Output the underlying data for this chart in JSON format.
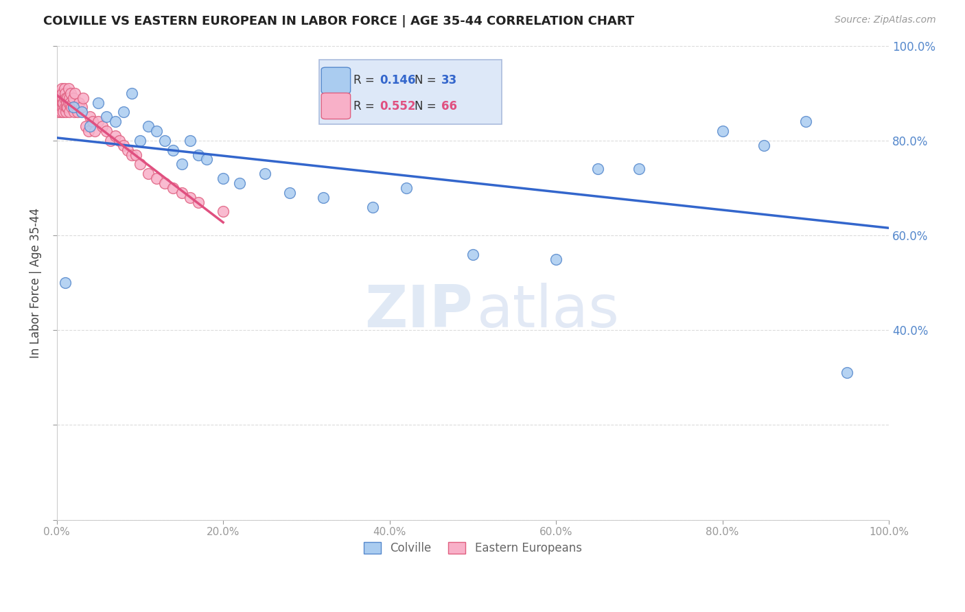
{
  "title": "COLVILLE VS EASTERN EUROPEAN IN LABOR FORCE | AGE 35-44 CORRELATION CHART",
  "source": "Source: ZipAtlas.com",
  "ylabel": "In Labor Force | Age 35-44",
  "xlim": [
    0.0,
    1.0
  ],
  "ylim": [
    0.0,
    1.0
  ],
  "colville_color": "#aaccf0",
  "colville_edge": "#5588cc",
  "eastern_color": "#f8b0c8",
  "eastern_edge": "#e06080",
  "trendline_colville": "#3366cc",
  "trendline_eastern": "#e05080",
  "R_colville": 0.146,
  "N_colville": 33,
  "R_eastern": 0.552,
  "N_eastern": 66,
  "colville_x": [
    0.01,
    0.02,
    0.03,
    0.04,
    0.05,
    0.06,
    0.07,
    0.08,
    0.09,
    0.1,
    0.11,
    0.12,
    0.13,
    0.14,
    0.15,
    0.16,
    0.17,
    0.18,
    0.2,
    0.22,
    0.25,
    0.28,
    0.32,
    0.38,
    0.42,
    0.5,
    0.6,
    0.65,
    0.7,
    0.8,
    0.85,
    0.9,
    0.95
  ],
  "colville_y": [
    0.5,
    0.87,
    0.86,
    0.83,
    0.88,
    0.85,
    0.84,
    0.86,
    0.9,
    0.8,
    0.83,
    0.82,
    0.8,
    0.78,
    0.75,
    0.8,
    0.77,
    0.76,
    0.72,
    0.71,
    0.73,
    0.69,
    0.68,
    0.66,
    0.7,
    0.56,
    0.55,
    0.74,
    0.74,
    0.82,
    0.79,
    0.84,
    0.31
  ],
  "eastern_x": [
    0.001,
    0.002,
    0.003,
    0.004,
    0.004,
    0.005,
    0.005,
    0.006,
    0.006,
    0.006,
    0.007,
    0.007,
    0.007,
    0.008,
    0.008,
    0.008,
    0.009,
    0.009,
    0.01,
    0.01,
    0.011,
    0.011,
    0.012,
    0.012,
    0.013,
    0.013,
    0.014,
    0.014,
    0.015,
    0.015,
    0.016,
    0.017,
    0.018,
    0.019,
    0.02,
    0.021,
    0.022,
    0.023,
    0.025,
    0.027,
    0.03,
    0.032,
    0.035,
    0.038,
    0.04,
    0.043,
    0.046,
    0.05,
    0.055,
    0.06,
    0.065,
    0.07,
    0.075,
    0.08,
    0.085,
    0.09,
    0.095,
    0.1,
    0.11,
    0.12,
    0.13,
    0.14,
    0.15,
    0.16,
    0.17,
    0.2
  ],
  "eastern_y": [
    0.87,
    0.86,
    0.88,
    0.87,
    0.9,
    0.86,
    0.88,
    0.87,
    0.89,
    0.91,
    0.88,
    0.89,
    0.9,
    0.87,
    0.88,
    0.86,
    0.89,
    0.91,
    0.87,
    0.9,
    0.86,
    0.89,
    0.87,
    0.88,
    0.89,
    0.87,
    0.88,
    0.91,
    0.86,
    0.89,
    0.88,
    0.9,
    0.87,
    0.88,
    0.89,
    0.86,
    0.9,
    0.87,
    0.86,
    0.88,
    0.87,
    0.89,
    0.83,
    0.82,
    0.85,
    0.84,
    0.82,
    0.84,
    0.83,
    0.82,
    0.8,
    0.81,
    0.8,
    0.79,
    0.78,
    0.77,
    0.77,
    0.75,
    0.73,
    0.72,
    0.71,
    0.7,
    0.69,
    0.68,
    0.67,
    0.65
  ],
  "watermark_zip": "ZIP",
  "watermark_atlas": "atlas",
  "background_color": "#ffffff",
  "grid_color": "#cccccc",
  "legend_box_color": "#dde8f8",
  "legend_box_edge": "#aabbdd",
  "legend_text_color": "#333333",
  "ytick_color": "#5588cc",
  "xtick_color": "#666666",
  "bottom_legend_text_color": "#666666"
}
